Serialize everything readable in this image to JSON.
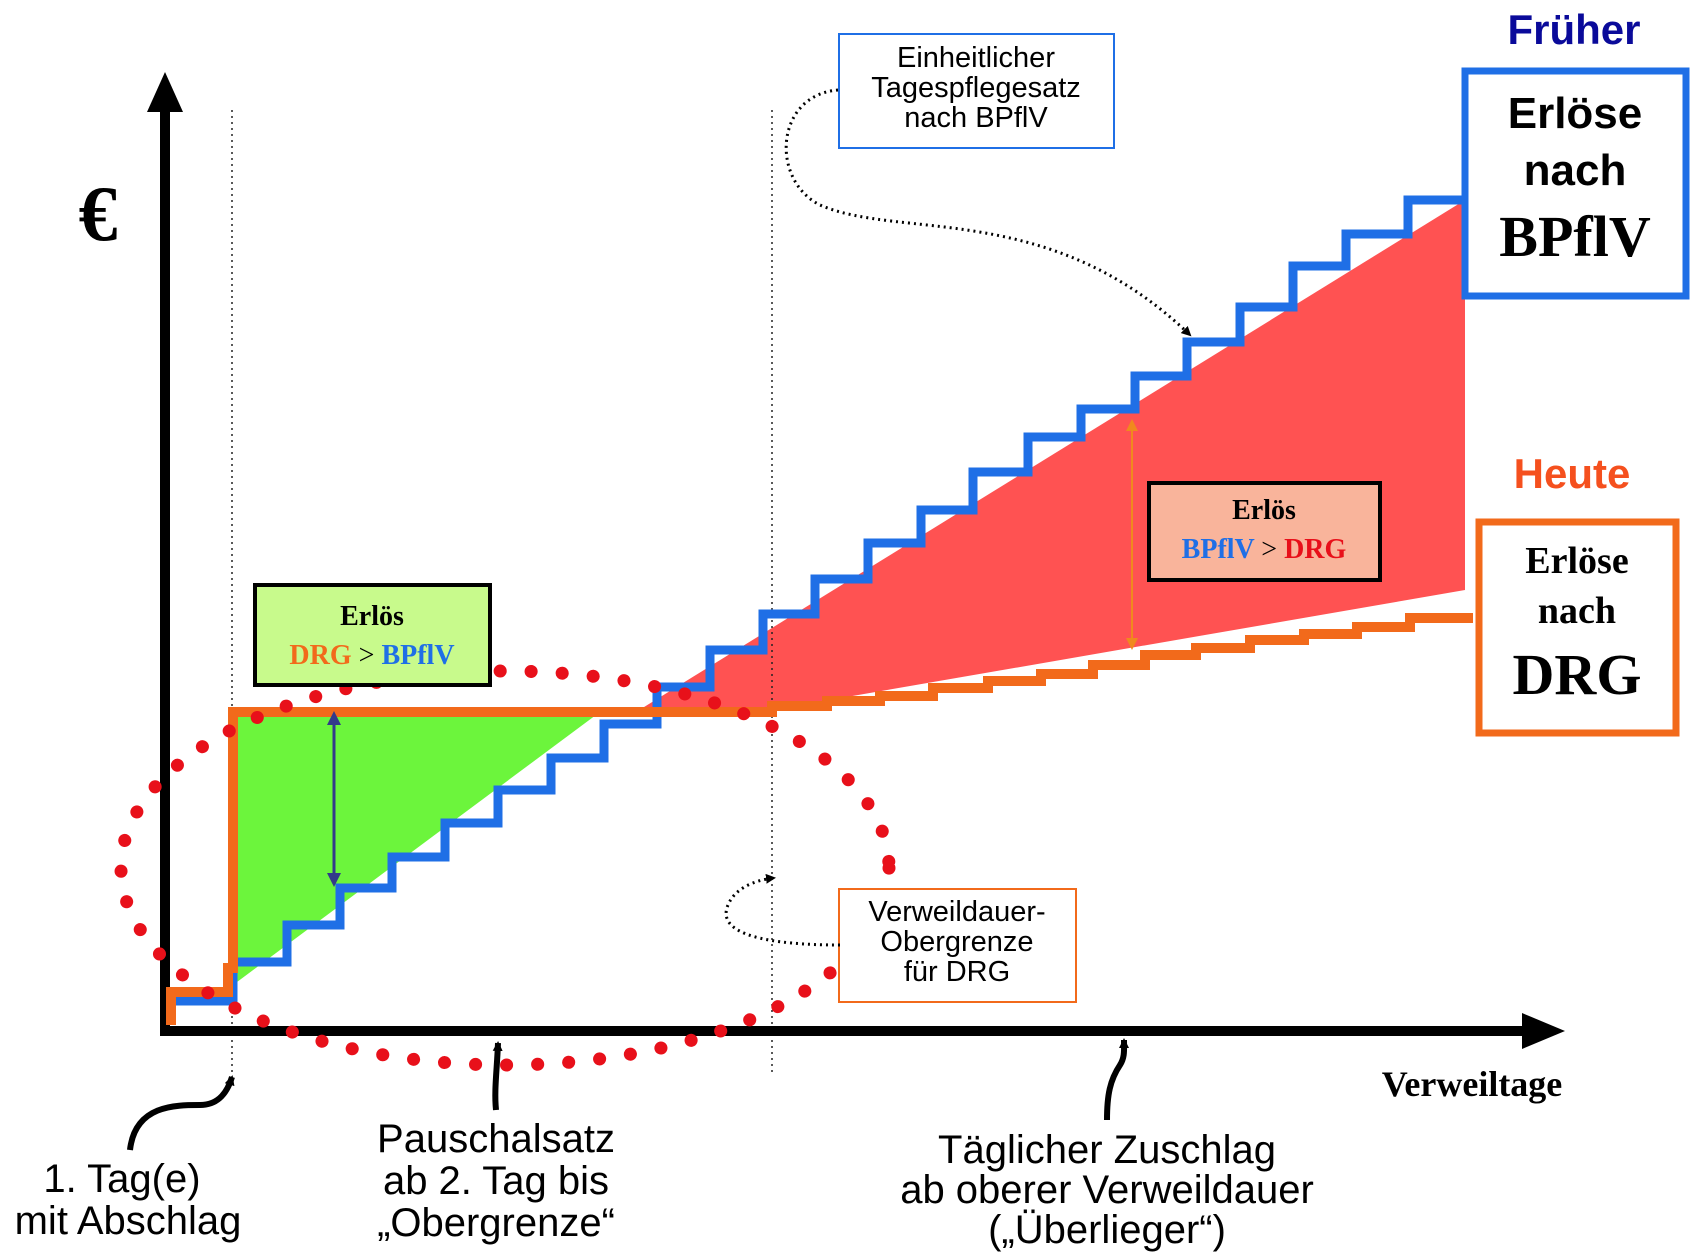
{
  "y_axis_symbol": "€",
  "x_axis_label": "Verweiltage",
  "frueher": {
    "heading": "Früher",
    "box_lines": [
      "Erlöse",
      "nach",
      "BPflV"
    ],
    "color": "#1f6fe6"
  },
  "heute": {
    "heading": "Heute",
    "box_lines": [
      "Erlöse",
      "nach",
      "DRG"
    ],
    "color": "#f26a1b"
  },
  "box_drg_gt_bpflv": {
    "title": "Erlös",
    "left": "DRG",
    "op": ">",
    "right": "BPflV",
    "bg": "#c8fa8c"
  },
  "box_bpflv_gt_drg": {
    "title": "Erlös",
    "left": "BPflV",
    "op": ">",
    "right": "DRG",
    "bg": "#f9b49b"
  },
  "callout_tagespflegesatz": [
    "Einheitlicher",
    "Tagespflegesatz",
    "nach BPflV"
  ],
  "callout_obergrenze": [
    "Verweildauer-",
    "Obergrenze",
    "für DRG"
  ],
  "label_abschlag": [
    "1. Tag(e)",
    "mit Abschlag"
  ],
  "label_pauschalsatz": [
    "Pauschalsatz",
    "ab 2. Tag bis",
    "„Obergrenze“"
  ],
  "label_zuschlag": [
    "Täglicher Zuschlag",
    "ab oberer Verweildauer",
    "(„Überlieger“)"
  ],
  "colors": {
    "bpflv_line": "#1f6fe6",
    "drg_line": "#f26a1b",
    "green_area": "#6cf53c",
    "red_area": "#ff5252",
    "dotted_ellipse": "#e8101a",
    "frueher_heading": "#0a0a9a",
    "heute_heading": "#f5501e"
  }
}
